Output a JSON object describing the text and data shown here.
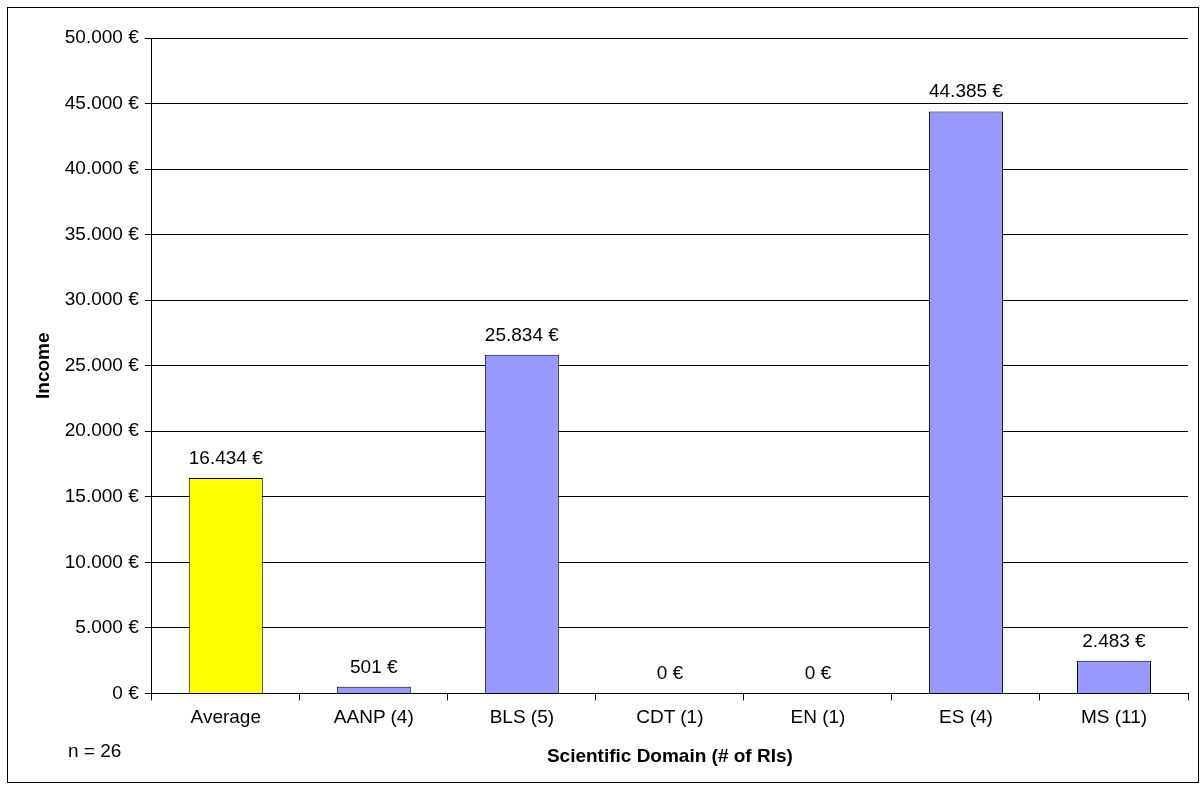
{
  "chart_data": {
    "type": "bar",
    "xlabel": "Scientific Domain (# of RIs)",
    "ylabel": "Income",
    "categories": [
      "Average",
      "AANP (4)",
      "BLS (5)",
      "CDT (1)",
      "EN (1)",
      "ES (4)",
      "MS (11)"
    ],
    "values": [
      16434,
      501,
      25834,
      0,
      0,
      44385,
      2483
    ],
    "colors": [
      "#ffff00",
      "#9999ff",
      "#9999ff",
      "#9999ff",
      "#9999ff",
      "#9999ff",
      "#9999ff"
    ],
    "value_labels": [
      "16.434 €",
      "501 €",
      "25.834 €",
      "0 €",
      "0 €",
      "44.385 €",
      "2.483 €"
    ],
    "ylim": [
      0,
      50000
    ],
    "yticks": [
      {
        "value": 0,
        "label": "0 €"
      },
      {
        "value": 5000,
        "label": "5.000 €"
      },
      {
        "value": 10000,
        "label": "10.000 €"
      },
      {
        "value": 15000,
        "label": "15.000 €"
      },
      {
        "value": 20000,
        "label": "20.000 €"
      },
      {
        "value": 25000,
        "label": "25.000 €"
      },
      {
        "value": 30000,
        "label": "30.000 €"
      },
      {
        "value": 35000,
        "label": "35.000 €"
      },
      {
        "value": 40000,
        "label": "40.000 €"
      },
      {
        "value": 45000,
        "label": "45.000 €"
      },
      {
        "value": 50000,
        "label": "50.000 €"
      }
    ],
    "grid": "y",
    "legend": false,
    "annotations": [
      "n = 26"
    ]
  }
}
